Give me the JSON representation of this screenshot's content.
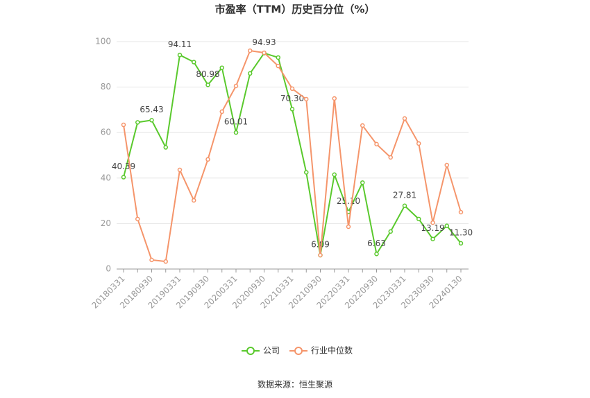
{
  "chart_data": {
    "type": "line",
    "title": "市盈率（TTM）历史百分位（%）",
    "source": "数据来源：恒生聚源",
    "categories": [
      "20180331",
      null,
      "20180930",
      null,
      "20190331",
      null,
      "20190930",
      null,
      "20200331",
      null,
      "20200930",
      null,
      "20210331",
      null,
      "20210930",
      null,
      "20220331",
      null,
      "20220930",
      null,
      "20230331",
      null,
      "20230930",
      null,
      "20240130"
    ],
    "series": [
      {
        "name": "公司",
        "color": "#5ac92d",
        "values": [
          40.39,
          64.5,
          65.43,
          53.5,
          94.11,
          91,
          80.98,
          88.5,
          60.01,
          86,
          94.93,
          93,
          70.3,
          42.5,
          6.09,
          41.5,
          25.1,
          38,
          6.63,
          16.5,
          27.81,
          22,
          13.19,
          19,
          11.3
        ],
        "value_labels": [
          "40.39",
          null,
          "65.43",
          null,
          "94.11",
          null,
          "80.98",
          null,
          "60.01",
          null,
          "94.93",
          null,
          "70.30",
          null,
          "6.09",
          null,
          "25.10",
          null,
          "6.63",
          null,
          "27.81",
          null,
          "13.19",
          null,
          "11.30"
        ]
      },
      {
        "name": "行业中位数",
        "color": "#f5956b",
        "values": [
          63.4,
          22,
          4,
          3.3,
          43.6,
          30.2,
          48.2,
          69.2,
          80.5,
          96,
          95.1,
          89.3,
          79.3,
          74.7,
          6.1,
          75,
          18.6,
          63.1,
          54.9,
          49.1,
          66.2,
          55.2,
          20.4,
          45.7,
          25
        ]
      }
    ],
    "ylim": [
      0,
      100
    ],
    "yticks": [
      0,
      20,
      40,
      60,
      80,
      100
    ],
    "grid": true
  }
}
